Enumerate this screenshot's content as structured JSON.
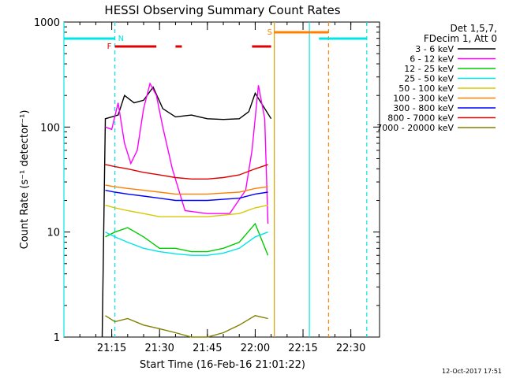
{
  "chart_data": {
    "type": "line",
    "title": "HESSI Observing Summary Count Rates",
    "xlabel": "Start Time (16-Feb-16 21:01:22)",
    "ylabel": "Count Rate (s⁻¹ detector⁻¹)",
    "yscale": "log",
    "ylim": [
      1,
      1000
    ],
    "xlim_minutes": [
      21.0,
      22.65
    ],
    "x_unit": "time of day (hours, decimal)",
    "x_ticks": [
      "21:15",
      "21:30",
      "21:45",
      "22:00",
      "22:15",
      "22:30"
    ],
    "y_ticks": [
      "1",
      "10",
      "100",
      "1000"
    ],
    "legend_header": [
      "Det 1,5,7,",
      "FDecim 1, Att 0"
    ],
    "legend_position": "right",
    "series": [
      {
        "name": "3 - 6 keV",
        "color": "#000000",
        "x": [
          "21:12",
          "21:13",
          "21:15",
          "21:17",
          "21:19",
          "21:22",
          "21:25",
          "21:28",
          "21:31",
          "21:35",
          "21:40",
          "21:45",
          "21:50",
          "21:55",
          "21:58",
          "22:00",
          "22:03",
          "22:05"
        ],
        "values": [
          1,
          120,
          125,
          130,
          200,
          170,
          180,
          240,
          150,
          125,
          130,
          120,
          118,
          120,
          140,
          210,
          150,
          120
        ]
      },
      {
        "name": "6 - 12 keV",
        "color": "#ff00ff",
        "x": [
          "21:13",
          "21:15",
          "21:17",
          "21:19",
          "21:21",
          "21:23",
          "21:25",
          "21:27",
          "21:29",
          "21:31",
          "21:34",
          "21:38",
          "21:45",
          "21:52",
          "21:57",
          "21:59",
          "22:01",
          "22:03",
          "22:04"
        ],
        "values": [
          100,
          95,
          170,
          70,
          45,
          60,
          150,
          260,
          200,
          100,
          40,
          16,
          15,
          15,
          25,
          60,
          250,
          120,
          12
        ]
      },
      {
        "name": "12 - 25 keV",
        "color": "#00cc00",
        "x": [
          "21:13",
          "21:16",
          "21:20",
          "21:25",
          "21:30",
          "21:35",
          "21:40",
          "21:45",
          "21:50",
          "21:55",
          "22:00",
          "22:04"
        ],
        "values": [
          9,
          10,
          11,
          9,
          7,
          7,
          6.5,
          6.5,
          7,
          8,
          12,
          6
        ]
      },
      {
        "name": "25 - 50 keV",
        "color": "#00e5e5",
        "x": [
          "21:13",
          "21:16",
          "21:20",
          "21:25",
          "21:30",
          "21:35",
          "21:40",
          "21:45",
          "21:50",
          "21:55",
          "22:00",
          "22:04"
        ],
        "values": [
          10,
          9,
          8,
          7,
          6.5,
          6.2,
          6,
          6,
          6.3,
          7,
          9,
          10
        ]
      },
      {
        "name": "50 - 100 keV",
        "color": "#d8c800",
        "x": [
          "21:13",
          "21:16",
          "21:20",
          "21:25",
          "21:30",
          "21:35",
          "21:40",
          "21:45",
          "21:50",
          "21:55",
          "22:00",
          "22:04"
        ],
        "values": [
          18,
          17,
          16,
          15,
          14,
          14,
          14,
          14,
          14.5,
          15,
          17,
          18
        ]
      },
      {
        "name": "100 - 300 keV",
        "color": "#ff8000",
        "x": [
          "21:13",
          "21:16",
          "21:20",
          "21:25",
          "21:30",
          "21:35",
          "21:40",
          "21:45",
          "21:50",
          "21:55",
          "22:00",
          "22:04"
        ],
        "values": [
          28,
          27,
          26,
          25,
          24,
          23,
          23,
          23,
          23.5,
          24,
          26,
          27
        ]
      },
      {
        "name": "300 - 800 keV",
        "color": "#0000ff",
        "x": [
          "21:13",
          "21:16",
          "21:20",
          "21:25",
          "21:30",
          "21:35",
          "21:40",
          "21:45",
          "21:50",
          "21:55",
          "22:00",
          "22:04"
        ],
        "values": [
          25,
          24,
          23,
          22,
          21,
          20,
          20,
          20,
          20.5,
          21,
          23,
          24
        ]
      },
      {
        "name": "800 - 7000 keV",
        "color": "#e00000",
        "x": [
          "21:13",
          "21:16",
          "21:20",
          "21:25",
          "21:30",
          "21:35",
          "21:40",
          "21:45",
          "21:50",
          "21:55",
          "22:00",
          "22:04"
        ],
        "values": [
          44,
          42,
          40,
          37,
          35,
          33,
          32,
          32,
          33,
          35,
          40,
          44
        ]
      },
      {
        "name": "7000 - 20000 keV",
        "color": "#808000",
        "x": [
          "21:13",
          "21:16",
          "21:20",
          "21:25",
          "21:30",
          "21:35",
          "21:40",
          "21:45",
          "21:50",
          "21:55",
          "22:00",
          "22:04"
        ],
        "values": [
          1.6,
          1.4,
          1.5,
          1.3,
          1.2,
          1.1,
          1,
          1,
          1.1,
          1.3,
          1.6,
          1.5
        ]
      }
    ],
    "flags": {
      "N_label": "N",
      "S_label": "S",
      "F_label": "F"
    },
    "footer_timestamp": "12-Oct-2017 17:51"
  }
}
